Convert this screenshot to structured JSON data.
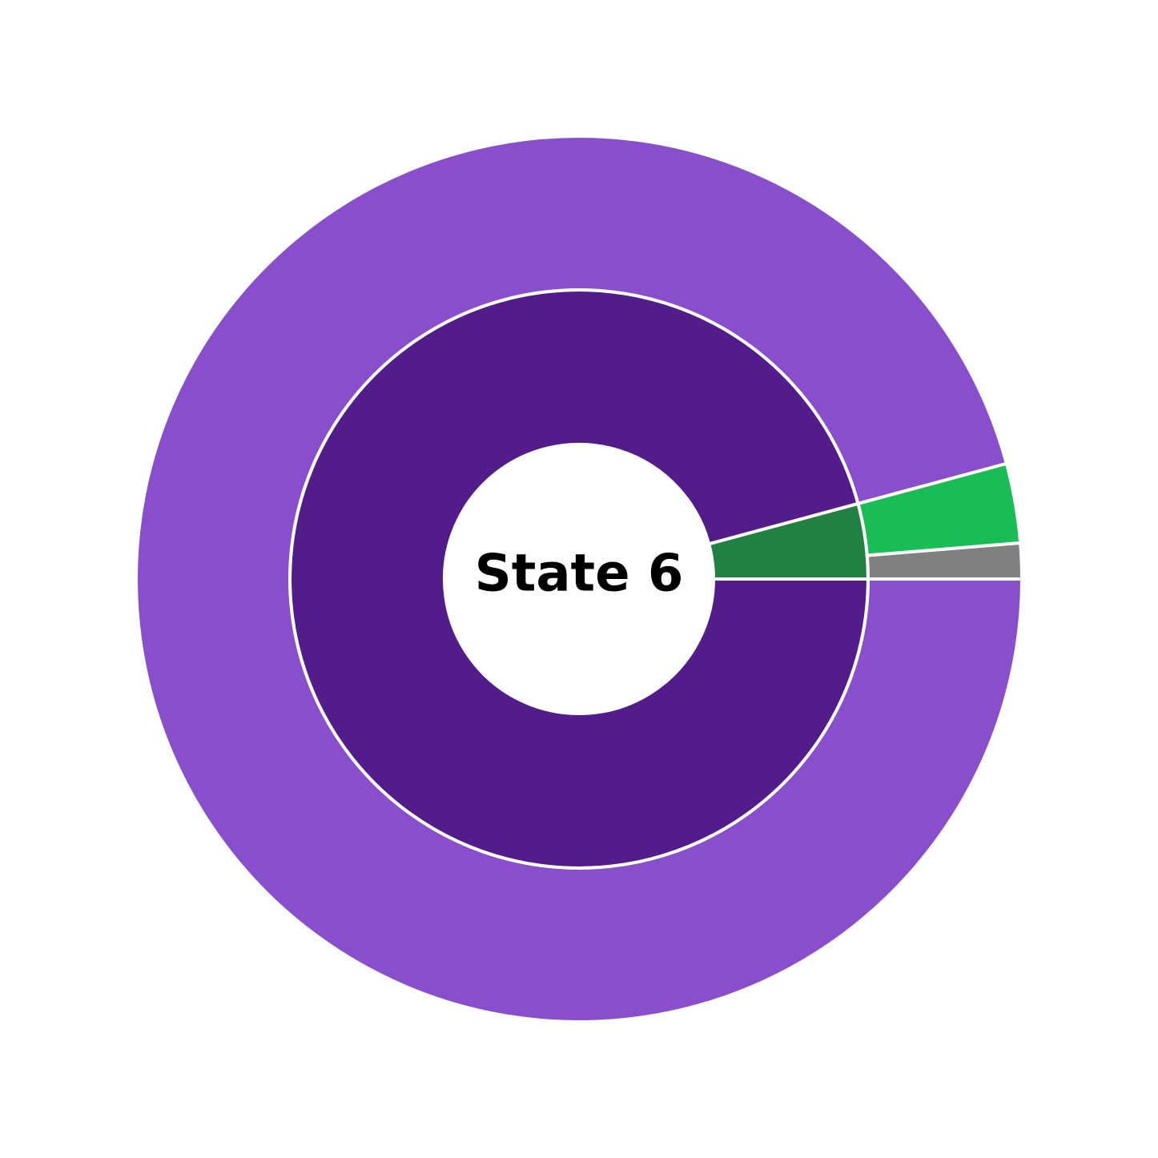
{
  "chart_data": {
    "type": "donut",
    "title": "State 6",
    "rings": [
      {
        "values": [
          4.2,
          95.8
        ],
        "colors": [
          "#208143",
          "#521d8a"
        ]
      },
      {
        "values": [
          1.3,
          2.9,
          95.8
        ],
        "colors": [
          "#808080",
          "#1abc55",
          "#894ecb"
        ]
      }
    ]
  }
}
